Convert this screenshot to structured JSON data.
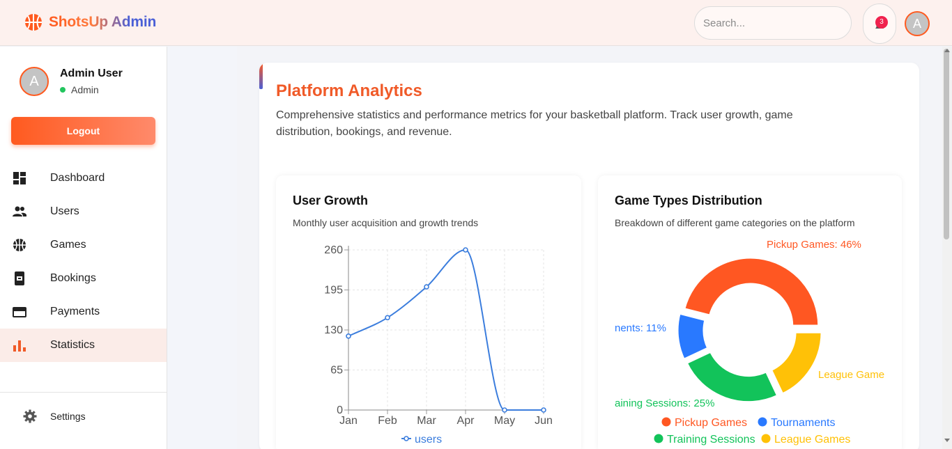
{
  "header": {
    "brand": "ShotsUp Admin",
    "search_placeholder": "Search...",
    "notification_count": "3",
    "avatar_initial": "A"
  },
  "sidebar": {
    "profile": {
      "initial": "A",
      "name": "Admin User",
      "role": "Admin"
    },
    "logout_label": "Logout",
    "items": [
      {
        "label": "Dashboard",
        "icon": "dashboard-icon"
      },
      {
        "label": "Users",
        "icon": "users-icon"
      },
      {
        "label": "Games",
        "icon": "basketball-icon"
      },
      {
        "label": "Bookings",
        "icon": "ticket-icon"
      },
      {
        "label": "Payments",
        "icon": "credit-card-icon"
      },
      {
        "label": "Statistics",
        "icon": "bar-chart-icon",
        "active": true
      }
    ],
    "settings_label": "Settings"
  },
  "main": {
    "title": "Platform Analytics",
    "description": "Comprehensive statistics and performance metrics for your basketball platform. Track user growth, game distribution, bookings, and revenue."
  },
  "colors": {
    "accent": "#ff5a1f",
    "title": "#f05a28",
    "line": "#3b7ddd",
    "pickup": "#ff5722",
    "tournaments": "#2979ff",
    "training": "#12c35a",
    "league": "#ffc107"
  },
  "chart_data": [
    {
      "type": "line",
      "title": "User Growth",
      "subtitle": "Monthly user acquisition and growth trends",
      "categories": [
        "Jan",
        "Feb",
        "Mar",
        "Apr",
        "May",
        "Jun"
      ],
      "series": [
        {
          "name": "users",
          "values": [
            120,
            150,
            200,
            260,
            0,
            0
          ]
        }
      ],
      "ylim": [
        0,
        260
      ],
      "yticks": [
        "0",
        "65",
        "130",
        "195",
        "260"
      ],
      "grid": true,
      "legend": "bottom"
    },
    {
      "type": "pie",
      "title": "Game Types Distribution",
      "subtitle": "Breakdown of different game categories on the platform",
      "categories": [
        "Pickup Games",
        "Tournaments",
        "Training Sessions",
        "League Games"
      ],
      "values": [
        46,
        11,
        25,
        18
      ],
      "data_labels": [
        "Pickup Games: 46%",
        "nents: 11%",
        "aining Sessions: 25%",
        "League Game"
      ],
      "legend": "bottom"
    }
  ]
}
